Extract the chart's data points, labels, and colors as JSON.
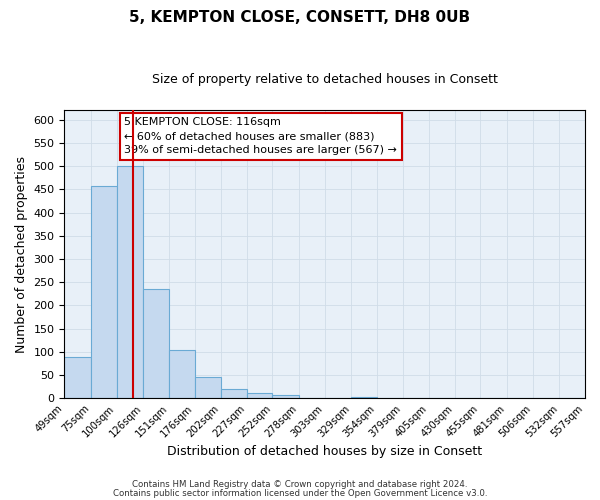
{
  "title": "5, KEMPTON CLOSE, CONSETT, DH8 0UB",
  "subtitle": "Size of property relative to detached houses in Consett",
  "xlabel": "Distribution of detached houses by size in Consett",
  "ylabel": "Number of detached properties",
  "bar_values": [
    90,
    458,
    500,
    236,
    104,
    46,
    20,
    11,
    7,
    1,
    0,
    4,
    1,
    0,
    0,
    1,
    0,
    0,
    0,
    0
  ],
  "bin_edges": [
    49,
    75,
    100,
    126,
    151,
    176,
    202,
    227,
    252,
    278,
    303,
    329,
    354,
    379,
    405,
    430,
    455,
    481,
    506,
    532,
    557
  ],
  "tick_labels": [
    "49sqm",
    "75sqm",
    "100sqm",
    "126sqm",
    "151sqm",
    "176sqm",
    "202sqm",
    "227sqm",
    "252sqm",
    "278sqm",
    "303sqm",
    "329sqm",
    "354sqm",
    "379sqm",
    "405sqm",
    "430sqm",
    "455sqm",
    "481sqm",
    "506sqm",
    "532sqm",
    "557sqm"
  ],
  "bar_color": "#c5d9ef",
  "bar_edgecolor": "#6aaad4",
  "vline_x": 116,
  "vline_color": "#cc0000",
  "ylim": [
    0,
    620
  ],
  "yticks": [
    0,
    50,
    100,
    150,
    200,
    250,
    300,
    350,
    400,
    450,
    500,
    550,
    600
  ],
  "annotation_line1": "5 KEMPTON CLOSE: 116sqm",
  "annotation_line2": "← 60% of detached houses are smaller (883)",
  "annotation_line3": "39% of semi-detached houses are larger (567) →",
  "footer_line1": "Contains HM Land Registry data © Crown copyright and database right 2024.",
  "footer_line2": "Contains public sector information licensed under the Open Government Licence v3.0.",
  "background_color": "#ffffff",
  "grid_color": "#d0dce8",
  "title_fontsize": 11,
  "subtitle_fontsize": 9,
  "ylabel_fontsize": 9,
  "xlabel_fontsize": 9
}
